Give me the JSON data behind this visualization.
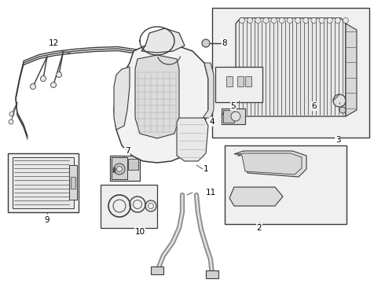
{
  "bg_color": "#ffffff",
  "line_color": "#3a3a3a",
  "fill_light": "#f0f0f0",
  "fill_mid": "#e0e0e0",
  "fill_dark": "#c8c8c8",
  "fill_box": "#ebebeb",
  "label_color": "#000000"
}
